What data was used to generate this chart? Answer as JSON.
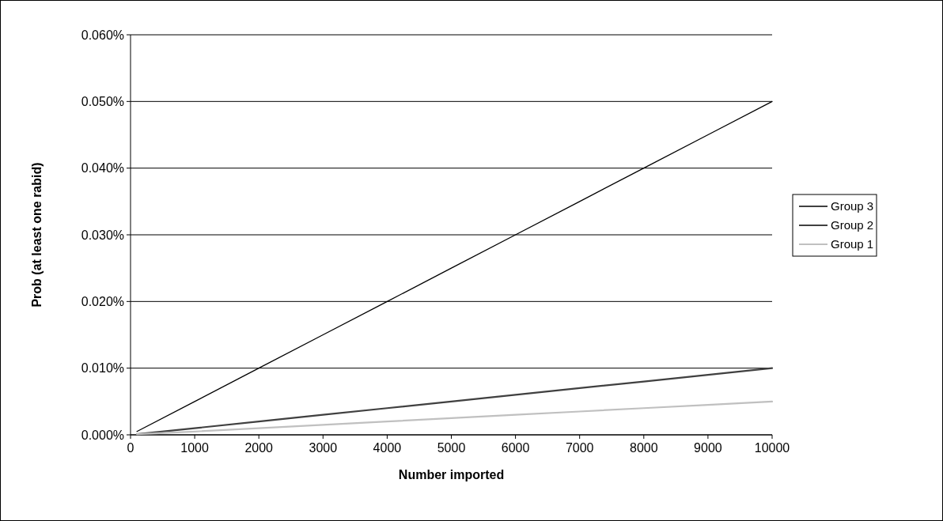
{
  "chart_data": {
    "type": "line",
    "xlabel": "Number imported",
    "ylabel": "Prob (at least one rabid)",
    "x": [
      100,
      1000,
      2000,
      3000,
      4000,
      5000,
      6000,
      7000,
      8000,
      9000,
      10000
    ],
    "series": [
      {
        "name": "Group 3",
        "color": "#000000",
        "values": [
          0.0005,
          0.005,
          0.01,
          0.015,
          0.02,
          0.025,
          0.03,
          0.035,
          0.04,
          0.045,
          0.05
        ]
      },
      {
        "name": "Group 2",
        "color": "#404040",
        "values": [
          0.0001,
          0.001,
          0.002,
          0.003,
          0.004,
          0.005,
          0.006,
          0.007,
          0.008,
          0.009,
          0.01
        ]
      },
      {
        "name": "Group 1",
        "color": "#c0c0c0",
        "values": [
          0.0001,
          0.0005,
          0.001,
          0.0015,
          0.002,
          0.0025,
          0.003,
          0.0035,
          0.004,
          0.0045,
          0.005
        ]
      }
    ],
    "xlim": [
      0,
      10000
    ],
    "xticks": [
      0,
      1000,
      2000,
      3000,
      4000,
      5000,
      6000,
      7000,
      8000,
      9000,
      10000
    ],
    "ylim": [
      0,
      0.06
    ],
    "yticks": [
      {
        "value": 0,
        "label": "0.000%"
      },
      {
        "value": 0.01,
        "label": "0.010%"
      },
      {
        "value": 0.02,
        "label": "0.020%"
      },
      {
        "value": 0.03,
        "label": "0.030%"
      },
      {
        "value": 0.04,
        "label": "0.040%"
      },
      {
        "value": 0.05,
        "label": "0.050%"
      },
      {
        "value": 0.06,
        "label": "0.060%"
      }
    ],
    "grid": "y",
    "legend": "right",
    "line_style": "solid"
  }
}
